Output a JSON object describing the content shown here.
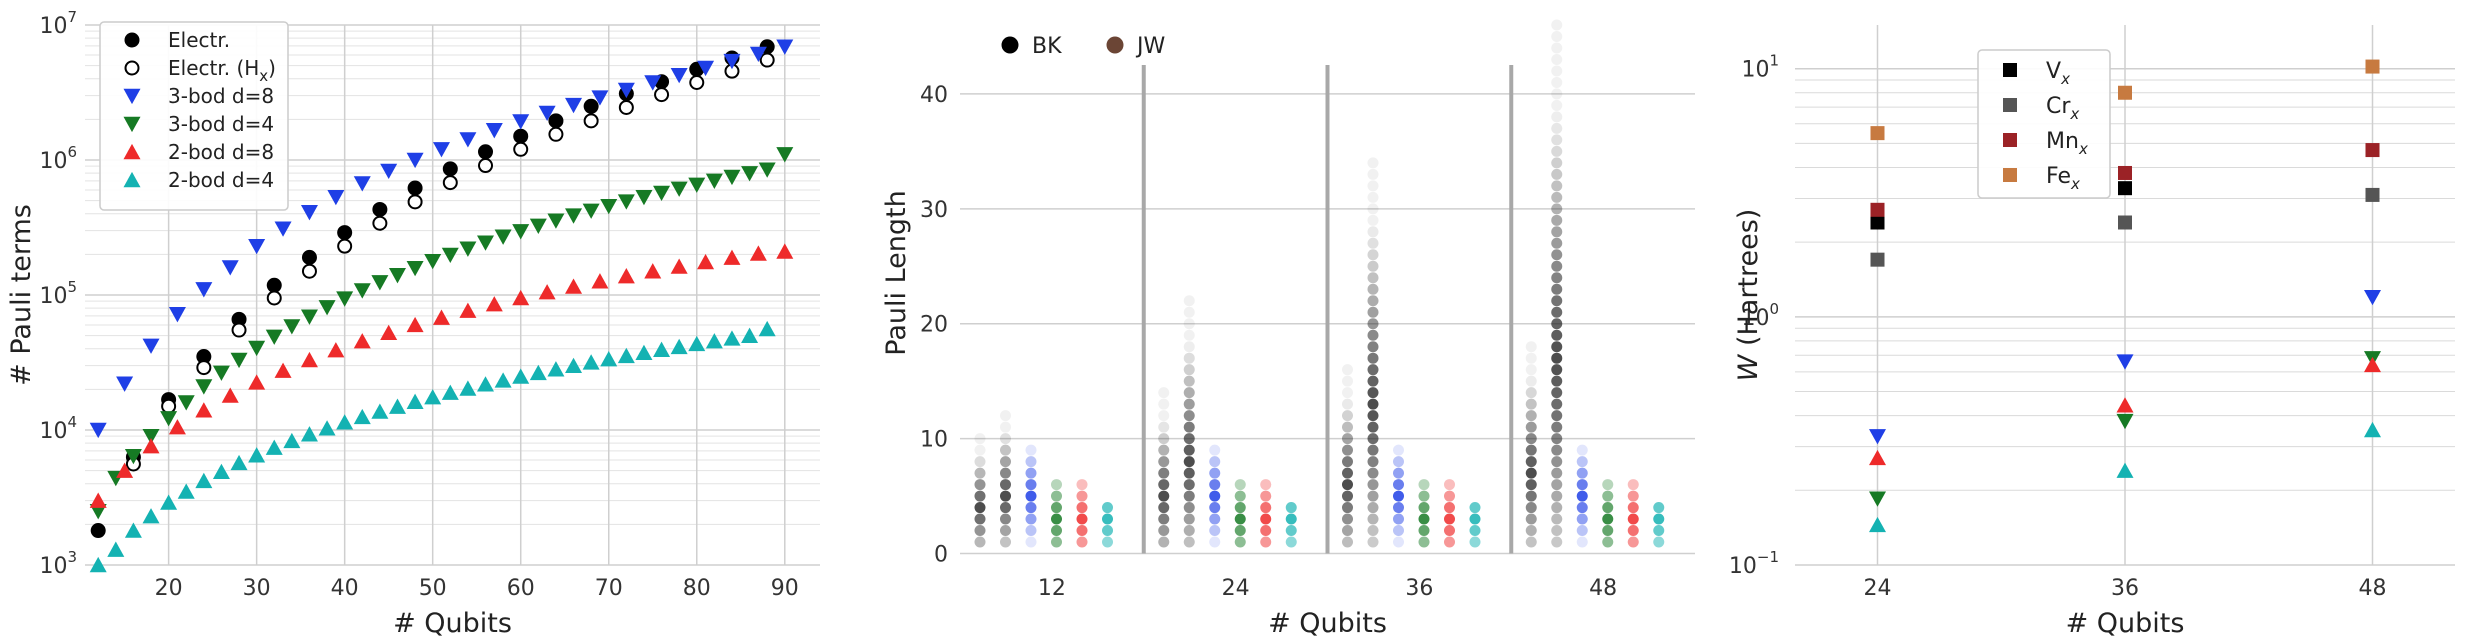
{
  "chart_data": [
    {
      "type": "scatter",
      "xlabel": "# Qubits",
      "ylabel": "# Pauli terms",
      "yscale": "log",
      "xlim": [
        10.5,
        94
      ],
      "ylim": [
        1000,
        10000000
      ],
      "xticks": [
        20,
        30,
        40,
        50,
        60,
        70,
        80,
        90
      ],
      "yticks": [
        1000,
        10000,
        100000,
        1000000,
        10000000
      ],
      "ytick_labels": [
        {
          "base": "10",
          "exp": "3"
        },
        {
          "base": "10",
          "exp": "4"
        },
        {
          "base": "10",
          "exp": "5"
        },
        {
          "base": "10",
          "exp": "6"
        },
        {
          "base": "10",
          "exp": "7"
        }
      ],
      "grid": true,
      "legend_position": "top-left",
      "series": [
        {
          "name": "Electr.",
          "marker": "circle",
          "filled": true,
          "color": "#000000",
          "x": [
            12,
            16,
            20,
            24,
            28,
            32,
            36,
            40,
            44,
            48,
            52,
            56,
            60,
            64,
            68,
            72,
            76,
            80,
            84,
            88
          ],
          "y": [
            1800,
            6300,
            16800,
            35000,
            66000,
            118000,
            190000,
            290000,
            430000,
            620000,
            860000,
            1150000,
            1500000,
            1950000,
            2500000,
            3100000,
            3800000,
            4700000,
            5700000,
            6900000
          ]
        },
        {
          "name": "Electr. (Hx)",
          "name_main": "Electr. (H",
          "name_sub": "x",
          "name_end": ")",
          "marker": "circle",
          "filled": false,
          "color": "#000000",
          "x": [
            16,
            20,
            24,
            28,
            32,
            36,
            40,
            44,
            48,
            52,
            56,
            60,
            64,
            68,
            72,
            76,
            80,
            84,
            88
          ],
          "y": [
            5600,
            15000,
            29000,
            55000,
            95000,
            150000,
            230000,
            340000,
            490000,
            680000,
            910000,
            1200000,
            1550000,
            1950000,
            2450000,
            3050000,
            3750000,
            4550000,
            5500000
          ]
        },
        {
          "name": "3-bod d=8",
          "marker": "triangle-down",
          "color": "#1f3fe6",
          "x": [
            12,
            15,
            18,
            21,
            24,
            27,
            30,
            33,
            36,
            39,
            42,
            45,
            48,
            51,
            54,
            57,
            60,
            63,
            66,
            69,
            72,
            75,
            78,
            81,
            84,
            87,
            90
          ],
          "y": [
            10000,
            22000,
            42000,
            72000,
            110000,
            160000,
            230000,
            310000,
            410000,
            530000,
            670000,
            830000,
            1000000,
            1200000,
            1420000,
            1660000,
            1930000,
            2230000,
            2550000,
            2900000,
            3300000,
            3750000,
            4250000,
            4800000,
            5400000,
            6100000,
            6900000
          ]
        },
        {
          "name": "3-bod d=4",
          "marker": "triangle-down",
          "color": "#167a24",
          "x": [
            12,
            14,
            16,
            18,
            20,
            22,
            24,
            26,
            28,
            30,
            32,
            34,
            36,
            38,
            40,
            42,
            44,
            46,
            48,
            50,
            52,
            54,
            56,
            58,
            60,
            62,
            64,
            66,
            68,
            70,
            72,
            74,
            76,
            78,
            80,
            82,
            84,
            86,
            88,
            90
          ],
          "y": [
            2500,
            4400,
            6400,
            9000,
            12200,
            16000,
            21000,
            26500,
            33000,
            40500,
            49000,
            58500,
            69000,
            81000,
            94000,
            108000,
            124000,
            140000,
            158000,
            178000,
            198000,
            220000,
            244000,
            270000,
            296000,
            325000,
            355000,
            387000,
            420000,
            455000,
            492000,
            530000,
            570000,
            612000,
            655000,
            700000,
            748000,
            797000,
            848000,
            1100000
          ]
        },
        {
          "name": "2-bod d=8",
          "marker": "triangle-up",
          "color": "#ee2a2a",
          "x": [
            12,
            15,
            18,
            21,
            24,
            27,
            30,
            33,
            36,
            39,
            42,
            45,
            48,
            51,
            54,
            57,
            60,
            63,
            66,
            69,
            72,
            75,
            78,
            81,
            84,
            87,
            90
          ],
          "y": [
            3000,
            5000,
            7600,
            10500,
            14000,
            18000,
            22500,
            27500,
            33000,
            39000,
            45500,
            52500,
            60000,
            68000,
            76500,
            85500,
            95000,
            105000,
            115500,
            126500,
            138000,
            150000,
            162500,
            175500,
            189000,
            203000,
            210000
          ]
        },
        {
          "name": "2-bod d=4",
          "marker": "triangle-up",
          "color": "#14b2b2",
          "x": [
            12,
            14,
            16,
            18,
            20,
            22,
            24,
            26,
            28,
            30,
            32,
            34,
            36,
            38,
            40,
            42,
            44,
            46,
            48,
            50,
            52,
            54,
            56,
            58,
            60,
            62,
            64,
            66,
            68,
            70,
            72,
            74,
            76,
            78,
            80,
            82,
            84,
            86,
            88
          ],
          "y": [
            1000,
            1300,
            1800,
            2300,
            2900,
            3500,
            4200,
            4900,
            5700,
            6500,
            7400,
            8300,
            9300,
            10300,
            11400,
            12500,
            13700,
            14900,
            16200,
            17500,
            18900,
            20300,
            21800,
            23300,
            24900,
            26500,
            28200,
            29900,
            31700,
            33500,
            35400,
            37300,
            39300,
            41300,
            43400,
            45500,
            47700,
            49900,
            56000
          ]
        }
      ]
    },
    {
      "type": "scatter",
      "xlabel": "# Qubits",
      "ylabel": "Pauli Length",
      "ylim": [
        -1,
        46
      ],
      "yticks": [
        0,
        10,
        20,
        30,
        40
      ],
      "categories": [
        "12",
        "24",
        "36",
        "48"
      ],
      "grid": true,
      "legend_position": "top-left",
      "legend": [
        {
          "name": "BK",
          "color": "#000000"
        },
        {
          "name": "JW",
          "color": "#6b4535"
        }
      ],
      "groups": [
        {
          "category": "12",
          "columns": [
            {
              "color": "#111111",
              "max": 10
            },
            {
              "color": "#111111",
              "max": 12
            },
            {
              "color": "#1f3fe6",
              "max": 9
            },
            {
              "color": "#167a24",
              "max": 6
            },
            {
              "color": "#ee2a2a",
              "max": 6
            },
            {
              "color": "#14b2b2",
              "max": 4
            }
          ]
        },
        {
          "category": "24",
          "columns": [
            {
              "color": "#111111",
              "max": 14
            },
            {
              "color": "#111111",
              "max": 22
            },
            {
              "color": "#1f3fe6",
              "max": 9
            },
            {
              "color": "#167a24",
              "max": 6
            },
            {
              "color": "#ee2a2a",
              "max": 6
            },
            {
              "color": "#14b2b2",
              "max": 4
            }
          ]
        },
        {
          "category": "36",
          "columns": [
            {
              "color": "#111111",
              "max": 16
            },
            {
              "color": "#111111",
              "max": 34
            },
            {
              "color": "#1f3fe6",
              "max": 9
            },
            {
              "color": "#167a24",
              "max": 6
            },
            {
              "color": "#ee2a2a",
              "max": 6
            },
            {
              "color": "#14b2b2",
              "max": 4
            }
          ]
        },
        {
          "category": "48",
          "columns": [
            {
              "color": "#111111",
              "max": 18
            },
            {
              "color": "#111111",
              "max": 46
            },
            {
              "color": "#1f3fe6",
              "max": 9
            },
            {
              "color": "#167a24",
              "max": 6
            },
            {
              "color": "#ee2a2a",
              "max": 6
            },
            {
              "color": "#14b2b2",
              "max": 4
            }
          ]
        }
      ]
    },
    {
      "type": "scatter",
      "xlabel": "# Qubits",
      "ylabel_main": "W",
      "ylabel_rest": " (Hartrees)",
      "yscale": "log",
      "xlim": [
        20,
        52
      ],
      "ylim": [
        0.1,
        15
      ],
      "xticks": [
        24,
        36,
        48
      ],
      "yticks": [
        0.1,
        1,
        10
      ],
      "ytick_labels": [
        {
          "base": "10",
          "exp": "−1"
        },
        {
          "base": "10",
          "exp": "0"
        },
        {
          "base": "10",
          "exp": "1"
        }
      ],
      "grid": true,
      "legend_position": "upper-center",
      "series": [
        {
          "name": "Vx",
          "name_main": "V",
          "name_sub": "x",
          "marker": "square",
          "color": "#000000",
          "x": [
            24,
            36,
            48
          ],
          "y": [
            2.4,
            3.3,
            null
          ]
        },
        {
          "name": "Crx",
          "name_main": "Cr",
          "name_sub": "x",
          "marker": "square",
          "color": "#555555",
          "x": [
            24,
            36,
            48
          ],
          "y": [
            1.7,
            2.4,
            3.1
          ]
        },
        {
          "name": "Mnx",
          "name_main": "Mn",
          "name_sub": "x",
          "marker": "square",
          "color": "#9b2226",
          "x": [
            24,
            36,
            48
          ],
          "y": [
            2.7,
            3.8,
            4.7
          ]
        },
        {
          "name": "Fex",
          "name_main": "Fe",
          "name_sub": "x",
          "marker": "square",
          "color": "#c77a40",
          "x": [
            24,
            36,
            48
          ],
          "y": [
            5.5,
            8.0,
            10.2
          ]
        },
        {
          "marker": "triangle-down",
          "color": "#1f3fe6",
          "x": [
            24,
            36,
            48
          ],
          "y": [
            0.33,
            0.66,
            1.2
          ]
        },
        {
          "marker": "triangle-down",
          "color": "#167a24",
          "x": [
            24,
            36,
            48
          ],
          "y": [
            0.185,
            0.38,
            0.68
          ]
        },
        {
          "marker": "triangle-up",
          "color": "#ee2a2a",
          "x": [
            24,
            36,
            48
          ],
          "y": [
            0.27,
            0.44,
            0.64
          ]
        },
        {
          "marker": "triangle-up",
          "color": "#14b2b2",
          "x": [
            24,
            36,
            48
          ],
          "y": [
            0.145,
            0.24,
            0.35
          ]
        }
      ]
    }
  ]
}
